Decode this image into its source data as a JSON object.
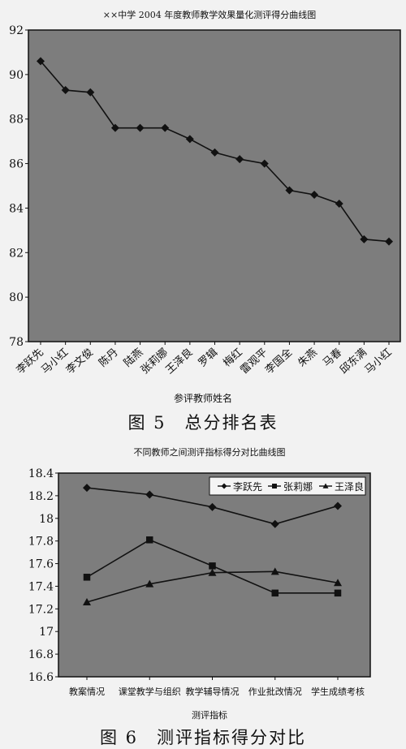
{
  "chart_data": [
    {
      "type": "line",
      "title": "××中学 2004 年度教师教学效果量化测评得分曲线图",
      "xlabel": "参评教师姓名",
      "ylabel": "",
      "ylim": [
        78,
        92
      ],
      "yticks": [
        78,
        80,
        82,
        84,
        86,
        88,
        90,
        92
      ],
      "grid": false,
      "categories": [
        "李跃先",
        "马小红",
        "李文俊",
        "陈丹",
        "陆燕",
        "张莉娜",
        "王泽良",
        "罗辑",
        "梅红",
        "雷观平",
        "李国全",
        "朱燕",
        "马春",
        "邱东满",
        "马小红"
      ],
      "series": [
        {
          "values": [
            90.6,
            89.3,
            89.2,
            87.6,
            87.6,
            87.6,
            87.1,
            86.5,
            86.2,
            86.0,
            84.8,
            84.6,
            84.2,
            82.6,
            82.5
          ],
          "marker": "diamond"
        }
      ],
      "background": "#7d7d7d",
      "line_color": "#111111"
    },
    {
      "type": "line",
      "title": "不同教师之间测评指标得分对比曲线图",
      "xlabel": "测评指标",
      "ylabel": "",
      "ylim": [
        16.6,
        18.4
      ],
      "yticks": [
        16.6,
        16.8,
        17,
        17.2,
        17.4,
        17.6,
        17.8,
        18,
        18.2,
        18.4
      ],
      "grid": false,
      "legend": "top-right",
      "categories": [
        "教案情况",
        "课堂教学与组织",
        "教学辅导情况",
        "作业批改情况",
        "学生成绩考核"
      ],
      "series": [
        {
          "name": "李跃先",
          "values": [
            18.27,
            18.21,
            18.1,
            17.95,
            18.11
          ],
          "marker": "diamond"
        },
        {
          "name": "张莉娜",
          "values": [
            17.48,
            17.81,
            17.58,
            17.34,
            17.34
          ],
          "marker": "square"
        },
        {
          "name": "王泽良",
          "values": [
            17.26,
            17.42,
            17.52,
            17.53,
            17.43
          ],
          "marker": "triangle"
        }
      ],
      "background": "#7d7d7d",
      "line_color": "#111111"
    }
  ],
  "captions": {
    "fig5": "图 5　总分排名表",
    "fig6": "图 6　测评指标得分对比"
  }
}
